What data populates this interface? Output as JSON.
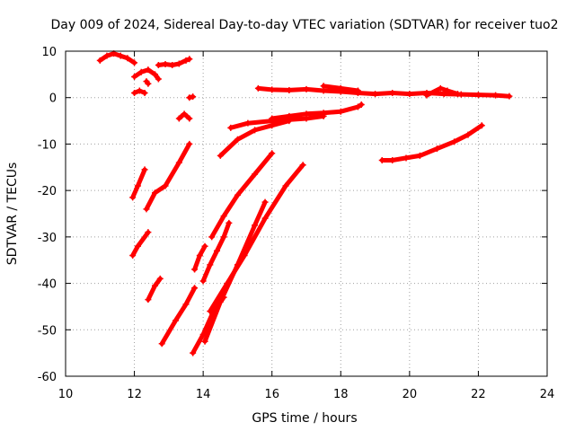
{
  "chart_data": {
    "type": "scatter",
    "title": "Day 009 of 2024, Sidereal Day-to-day VTEC variation (SDTVAR) for receiver tuo2",
    "xlabel": "GPS time / hours",
    "ylabel": "SDTVAR / TECUs",
    "xlim": [
      10,
      24
    ],
    "ylim": [
      -60,
      10
    ],
    "x_ticks": [
      10,
      12,
      14,
      16,
      18,
      20,
      22,
      24
    ],
    "y_ticks": [
      10,
      0,
      -10,
      -20,
      -30,
      -40,
      -50,
      -60
    ],
    "grid": true,
    "marker_color": "#ff0000",
    "series": [
      {
        "x": [
          11.0,
          11.2,
          11.4,
          11.6,
          11.8,
          12.0
        ],
        "y": [
          8.0,
          9.0,
          9.5,
          9.0,
          8.5,
          7.5
        ]
      },
      {
        "x": [
          12.0,
          12.2,
          12.4,
          12.6,
          12.7
        ],
        "y": [
          4.5,
          5.5,
          6.0,
          5.0,
          4.0
        ]
      },
      {
        "x": [
          12.0,
          12.15,
          12.3
        ],
        "y": [
          1.0,
          1.5,
          1.0
        ]
      },
      {
        "x": [
          12.35,
          12.4
        ],
        "y": [
          3.5,
          3.0
        ]
      },
      {
        "x": [
          12.7,
          12.9,
          13.1,
          13.3,
          13.5,
          13.6
        ],
        "y": [
          7.0,
          7.2,
          7.0,
          7.3,
          8.0,
          8.3
        ]
      },
      {
        "x": [
          13.6,
          13.7
        ],
        "y": [
          0.0,
          0.2
        ]
      },
      {
        "x": [
          13.3,
          13.45,
          13.6
        ],
        "y": [
          -4.5,
          -3.5,
          -4.5
        ]
      },
      {
        "x": [
          11.95,
          12.1,
          12.3
        ],
        "y": [
          -21.5,
          -19.0,
          -15.5
        ]
      },
      {
        "x": [
          11.95,
          12.1,
          12.4
        ],
        "y": [
          -34.0,
          -32.0,
          -29.0
        ]
      },
      {
        "x": [
          12.35,
          12.6,
          12.9,
          13.3,
          13.6
        ],
        "y": [
          -24.0,
          -20.5,
          -19.0,
          -14.0,
          -10.0
        ]
      },
      {
        "x": [
          12.4,
          12.6,
          12.75
        ],
        "y": [
          -43.5,
          -40.5,
          -39.0
        ]
      },
      {
        "x": [
          12.8,
          13.2,
          13.5,
          13.75
        ],
        "y": [
          -53.0,
          -48.0,
          -44.5,
          -41.0
        ]
      },
      {
        "x": [
          13.75,
          13.9,
          14.05
        ],
        "y": [
          -37.0,
          -34.0,
          -32.0
        ]
      },
      {
        "x": [
          13.7,
          14.0,
          14.3,
          14.6
        ],
        "y": [
          -55.0,
          -51.0,
          -46.0,
          -43.0
        ]
      },
      {
        "x": [
          14.0,
          14.2,
          14.4,
          14.6,
          14.75
        ],
        "y": [
          -39.5,
          -36.0,
          -33.0,
          -30.0,
          -27.0
        ]
      },
      {
        "x": [
          14.05,
          14.5,
          15.0,
          15.5,
          15.8
        ],
        "y": [
          -52.5,
          -44.0,
          -36.0,
          -27.5,
          -22.5
        ]
      },
      {
        "x": [
          14.2,
          14.7,
          15.2,
          15.8,
          16.4,
          16.9
        ],
        "y": [
          -46.0,
          -40.0,
          -34.0,
          -26.0,
          -19.0,
          -14.5
        ]
      },
      {
        "x": [
          14.25,
          14.6,
          15.0,
          15.5,
          16.0
        ],
        "y": [
          -30.0,
          -25.5,
          -21.0,
          -16.5,
          -12.0
        ]
      },
      {
        "x": [
          14.5,
          15.0,
          15.5,
          16.0,
          16.5
        ],
        "y": [
          -12.5,
          -9.0,
          -7.0,
          -6.0,
          -5.0
        ]
      },
      {
        "x": [
          14.8,
          15.3,
          16.0,
          17.0,
          17.5
        ],
        "y": [
          -6.5,
          -5.5,
          -5.0,
          -4.5,
          -4.0
        ]
      },
      {
        "x": [
          16.0,
          16.5,
          17.0,
          17.5,
          18.0,
          18.5,
          18.6
        ],
        "y": [
          -4.5,
          -4.0,
          -3.5,
          -3.3,
          -3.0,
          -2.0,
          -1.5
        ]
      },
      {
        "x": [
          15.6,
          16.0,
          16.5,
          17.0,
          17.5,
          18.0,
          18.5,
          19.0,
          19.5,
          20.0,
          20.5,
          21.0,
          21.5,
          22.0,
          22.5,
          22.9
        ],
        "y": [
          2.0,
          1.7,
          1.6,
          1.8,
          1.5,
          1.3,
          1.0,
          0.8,
          1.0,
          0.8,
          1.0,
          0.8,
          0.7,
          0.6,
          0.5,
          0.3
        ]
      },
      {
        "x": [
          17.5,
          18.0,
          18.5
        ],
        "y": [
          2.5,
          2.0,
          1.5
        ]
      },
      {
        "x": [
          20.5,
          20.9,
          21.1,
          21.4
        ],
        "y": [
          0.5,
          2.0,
          1.5,
          0.8
        ]
      },
      {
        "x": [
          19.2,
          19.5,
          19.9,
          20.3,
          20.8,
          21.3,
          21.7,
          22.1
        ],
        "y": [
          -13.5,
          -13.5,
          -13.0,
          -12.5,
          -11.0,
          -9.5,
          -8.0,
          -6.0
        ]
      }
    ]
  }
}
